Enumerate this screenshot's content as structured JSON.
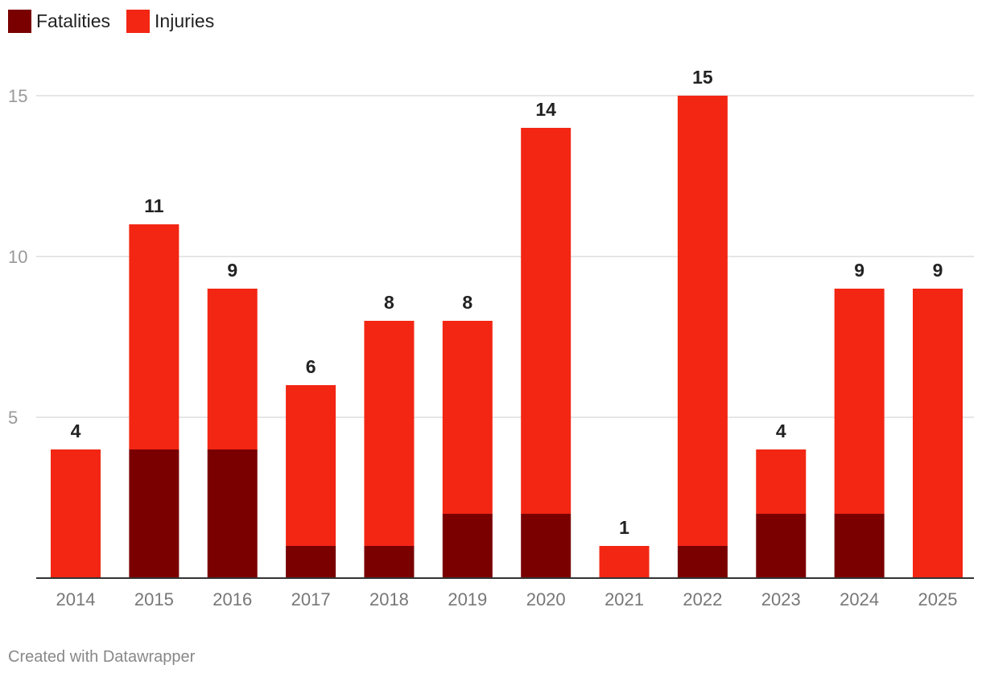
{
  "legend": {
    "fatalities_label": "Fatalities",
    "injuries_label": "Injuries"
  },
  "footer": {
    "credit": "Created with Datawrapper"
  },
  "colors": {
    "fatalities": "#7a0000",
    "injuries": "#f22613",
    "grid": "#dddddd",
    "axis": "#333333"
  },
  "chart_data": {
    "type": "bar",
    "stacked": true,
    "categories": [
      "2014",
      "2015",
      "2016",
      "2017",
      "2018",
      "2019",
      "2020",
      "2021",
      "2022",
      "2023",
      "2024",
      "2025"
    ],
    "series": [
      {
        "name": "Fatalities",
        "values": [
          0,
          4,
          4,
          1,
          1,
          2,
          2,
          0,
          1,
          2,
          2,
          0
        ]
      },
      {
        "name": "Injuries",
        "values": [
          4,
          7,
          5,
          5,
          7,
          6,
          12,
          1,
          14,
          2,
          7,
          9
        ]
      }
    ],
    "totals": [
      4,
      11,
      9,
      6,
      8,
      8,
      14,
      1,
      15,
      4,
      9,
      9
    ],
    "yticks": [
      5,
      10,
      15
    ],
    "ylim": [
      0,
      15
    ],
    "title": "",
    "xlabel": "",
    "ylabel": "",
    "legend_position": "top-left"
  }
}
